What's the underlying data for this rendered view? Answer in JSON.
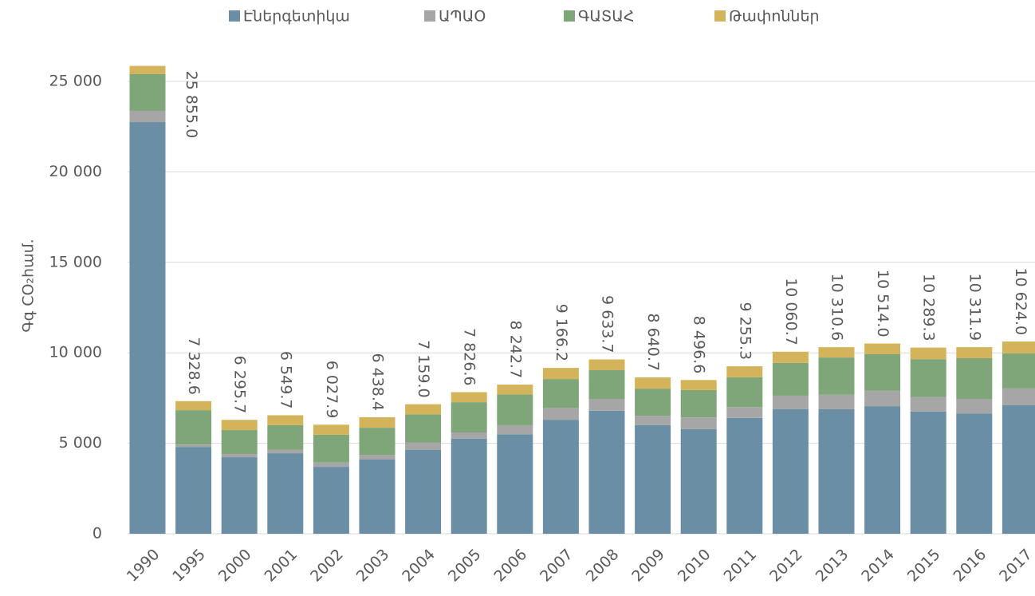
{
  "chart_data": {
    "type": "stacked_bar",
    "y_label": "Գգ CO₂համ.",
    "categories": [
      "1990",
      "1995",
      "2000",
      "2001",
      "2002",
      "2003",
      "2004",
      "2005",
      "2006",
      "2007",
      "2008",
      "2009",
      "2010",
      "2011",
      "2012",
      "2013",
      "2014",
      "2015",
      "2016",
      "2017"
    ],
    "series": [
      {
        "name": "Էներգետիկա",
        "color": "#6a8fa5",
        "values": [
          22750,
          4800,
          4230,
          4450,
          3700,
          4100,
          4630,
          5250,
          5500,
          6300,
          6800,
          6000,
          5780,
          6400,
          6880,
          6880,
          7050,
          6750,
          6650,
          7100
        ]
      },
      {
        "name": "ԱՊԱՕ",
        "color": "#a6a6a6",
        "values": [
          620,
          130,
          180,
          200,
          250,
          250,
          400,
          350,
          500,
          650,
          650,
          520,
          650,
          600,
          750,
          800,
          850,
          800,
          800,
          930
        ]
      },
      {
        "name": "ԳԱՏԱՀ",
        "color": "#7fa679",
        "values": [
          2030,
          1900,
          1320,
          1350,
          1520,
          1510,
          1570,
          1670,
          1700,
          1600,
          1590,
          1500,
          1510,
          1650,
          1810,
          2060,
          2020,
          2100,
          2250,
          1940
        ]
      },
      {
        "name": "Թափոններ",
        "color": "#d4b45a",
        "values": [
          455,
          499,
          566,
          550,
          558,
          578,
          559,
          557,
          543,
          616,
          594,
          621,
          557,
          605,
          621,
          571,
          594,
          639,
          612,
          654
        ]
      }
    ],
    "totals": [
      25855.0,
      7328.6,
      6295.7,
      6549.7,
      6027.9,
      6438.4,
      7159.0,
      7826.6,
      8242.7,
      9166.2,
      9633.7,
      8640.7,
      8496.6,
      9255.3,
      10060.7,
      10310.6,
      10514.0,
      10289.3,
      10311.9,
      10624.0
    ],
    "total_labels": [
      "25 855.0",
      "7 328.6",
      "6 295.7",
      "6 549.7",
      "6 027.9",
      "6 438.4",
      "7 159.0",
      "7 826.6",
      "8 242.7",
      "9 166.2",
      "9 633.7",
      "8 640.7",
      "8 496.6",
      "9 255.3",
      "10 060.7",
      "10 310.6",
      "10 514.0",
      "10 289.3",
      "10 311.9",
      "10 624.0"
    ],
    "ylim": [
      0,
      25855
    ],
    "yticks": [
      0,
      {
        "value": 5000,
        "label": "5 000"
      },
      {
        "value": 10000,
        "label": "10 000"
      },
      {
        "value": 15000,
        "label": "15 000"
      },
      {
        "value": 20000,
        "label": "20 000"
      },
      {
        "value": 25000,
        "label": "25 000"
      }
    ],
    "grid": true,
    "legend": "top"
  }
}
